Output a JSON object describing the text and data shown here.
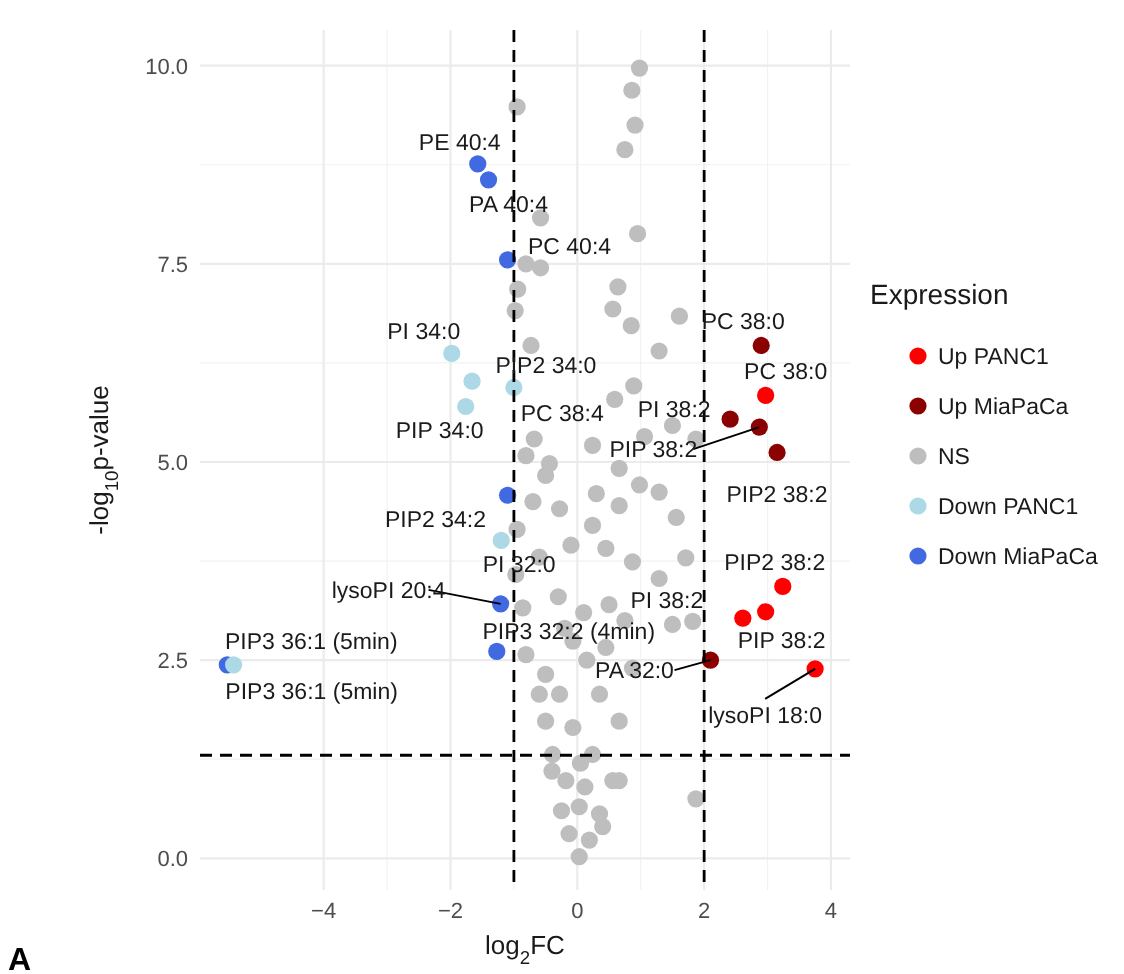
{
  "chart_data": {
    "type": "scatter",
    "xlabel": "log$_{2}$FC",
    "ylabel": "-log$_{10}$p-value",
    "legend_title": "Expression",
    "legend": "right",
    "grid": true,
    "marker": "circle",
    "xlim": [
      -5.95,
      4.3
    ],
    "ylim": [
      -0.4,
      10.45
    ],
    "xticks": [
      {
        "value": -4,
        "label": "−4"
      },
      {
        "value": -2,
        "label": "−2"
      },
      0,
      2,
      4
    ],
    "yticks": [
      {
        "value": 0,
        "label": "0.0"
      },
      {
        "value": 2.5,
        "label": "2.5"
      },
      {
        "value": 5,
        "label": "5.0"
      },
      {
        "value": 7.5,
        "label": "7.5"
      },
      {
        "value": 10,
        "label": "10.0"
      }
    ],
    "ref_lines": [
      {
        "axis": "x",
        "value": -1,
        "line_style": "dashed",
        "color": "#000000"
      },
      {
        "axis": "x",
        "value": 2,
        "line_style": "dashed",
        "color": "#000000"
      },
      {
        "axis": "y",
        "value": 1.3,
        "line_style": "dashed",
        "color": "#000000"
      }
    ],
    "series": [
      {
        "name": "Up PANC1",
        "color": "#ff0000",
        "x": [
          2.97,
          3.24,
          2.97,
          2.61,
          3.75
        ],
        "values": [
          5.84,
          3.43,
          3.11,
          3.03,
          2.39
        ]
      },
      {
        "name": "Up MiaPaCa",
        "color": "#8b0000",
        "x": [
          2.9,
          2.41,
          2.87,
          3.15,
          2.1
        ],
        "values": [
          6.47,
          5.54,
          5.44,
          5.12,
          2.5
        ]
      },
      {
        "name": "NS",
        "color": "#bebebe",
        "x": [
          0.98,
          0.86,
          0.91,
          0.75,
          -0.95,
          -0.58,
          0.95,
          -0.81,
          -0.58,
          -0.94,
          -0.98,
          0.64,
          0.56,
          0.85,
          1.61,
          1.29,
          -0.73,
          0.89,
          0.59,
          -0.68,
          0.24,
          1.06,
          1.5,
          1.87,
          -0.44,
          -0.81,
          0.66,
          -0.5,
          -0.7,
          -0.28,
          0.24,
          0.66,
          1.29,
          1.56,
          0.98,
          0.45,
          0.87,
          1.29,
          1.71,
          1.82,
          1.5,
          -0.81,
          -0.5,
          -0.07,
          0.45,
          0.87,
          -0.28,
          0.35,
          -0.5,
          -0.07,
          0.66,
          -0.39,
          0.24,
          -0.18,
          0.56,
          0.03,
          0.35,
          -0.13,
          0.03,
          0.19,
          1.87,
          0.66,
          -0.6,
          -0.86,
          -0.97,
          -0.95,
          -0.3,
          0.1,
          0.5,
          -0.2,
          0.15,
          -0.6,
          0.3,
          -0.1,
          0.75,
          -0.4,
          0.05,
          -0.25,
          0.4,
          0.12
        ],
        "values": [
          9.97,
          9.69,
          9.25,
          8.94,
          9.48,
          8.08,
          7.88,
          7.5,
          7.45,
          7.18,
          6.91,
          7.21,
          6.93,
          6.72,
          6.84,
          6.4,
          6.47,
          5.96,
          5.79,
          5.29,
          5.21,
          5.32,
          5.46,
          5.29,
          4.98,
          5.08,
          4.92,
          4.83,
          4.5,
          4.41,
          4.2,
          4.45,
          4.62,
          4.3,
          4.71,
          3.91,
          3.74,
          3.53,
          3.79,
          2.99,
          2.95,
          2.57,
          2.32,
          2.74,
          2.66,
          2.4,
          2.07,
          2.07,
          1.73,
          1.65,
          1.73,
          1.31,
          1.31,
          0.98,
          0.98,
          0.65,
          0.56,
          0.31,
          0.02,
          0.23,
          0.75,
          0.98,
          2.07,
          3.16,
          3.58,
          4.15,
          3.3,
          3.1,
          3.2,
          2.9,
          2.5,
          3.8,
          4.6,
          3.95,
          3.0,
          1.1,
          1.2,
          0.6,
          0.4,
          0.9
        ]
      },
      {
        "name": "Down PANC1",
        "color": "#add8e6",
        "x": [
          -1.98,
          -1.66,
          -1.76,
          -1.0,
          -1.2,
          -5.42
        ],
        "values": [
          6.37,
          6.02,
          5.7,
          5.94,
          4.01,
          2.44
        ]
      },
      {
        "name": "Down MiaPaCa",
        "color": "#4169e1",
        "x": [
          -1.57,
          -1.4,
          -1.1,
          -1.1,
          -1.21,
          -1.27,
          -5.52
        ],
        "values": [
          8.76,
          8.56,
          7.55,
          4.58,
          3.21,
          2.61,
          2.44
        ]
      }
    ],
    "annotations": [
      {
        "text": "PE 40:4",
        "x": -1.57,
        "y": 8.76
      },
      {
        "text": "PA 40:4",
        "x": -1.4,
        "y": 8.56
      },
      {
        "text": "PC 40:4",
        "x": -1.1,
        "y": 7.55
      },
      {
        "text": "PI 34:0",
        "x": -1.98,
        "y": 6.37
      },
      {
        "text": "PIP2 34:0",
        "x": -1.0,
        "y": 5.94
      },
      {
        "text": "PIP 34:0",
        "x": -1.76,
        "y": 5.7
      },
      {
        "text": "PC 38:4",
        "x": -0.68,
        "y": 5.29
      },
      {
        "text": "PC 38:0",
        "x": 2.9,
        "y": 6.47
      },
      {
        "text": "PC 38:0",
        "x": 2.97,
        "y": 5.84
      },
      {
        "text": "PI 38:2",
        "x": 2.41,
        "y": 5.54
      },
      {
        "text": "PIP 38:2",
        "x": 2.87,
        "y": 5.44
      },
      {
        "text": "PIP2 38:2",
        "x": 3.15,
        "y": 5.12
      },
      {
        "text": "PIP2 34:2",
        "x": -1.1,
        "y": 4.58
      },
      {
        "text": "PI 32:0",
        "x": -1.2,
        "y": 4.01
      },
      {
        "text": "lysoPI 20:4",
        "x": -1.21,
        "y": 3.21
      },
      {
        "text": "PIP3 32:2 (4min)",
        "x": -1.27,
        "y": 2.61
      },
      {
        "text": "PIP3 36:1 (5min)",
        "x": -5.52,
        "y": 2.44
      },
      {
        "text": "PIP3 36:1 (5min)",
        "x": -5.42,
        "y": 2.44
      },
      {
        "text": "PIP2 38:2",
        "x": 3.24,
        "y": 3.43
      },
      {
        "text": "PI 38:2",
        "x": 2.61,
        "y": 3.03
      },
      {
        "text": "PIP 38:2",
        "x": 2.97,
        "y": 3.11
      },
      {
        "text": "PA 32:0",
        "x": 2.1,
        "y": 2.5
      },
      {
        "text": "lysoPI 18:0",
        "x": 3.75,
        "y": 2.39
      },
      "A"
    ]
  }
}
